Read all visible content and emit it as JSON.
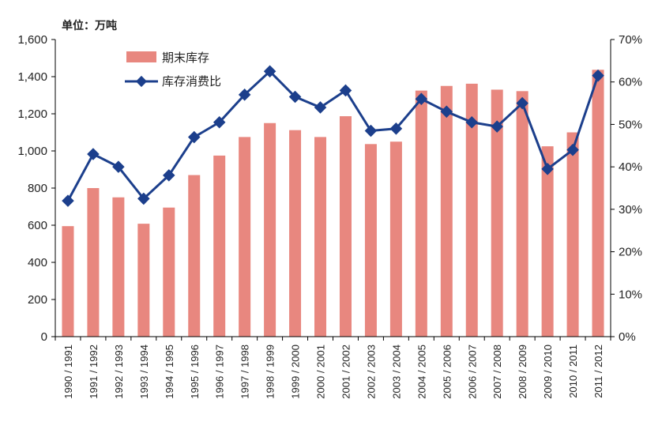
{
  "chart_data": {
    "type": "bar+line",
    "unit_label": "单位：万吨",
    "categories": [
      "1990 / 1991",
      "1991 / 1992",
      "1992 / 1993",
      "1993 / 1994",
      "1994 / 1995",
      "1995 / 1996",
      "1996 / 1997",
      "1997 / 1998",
      "1998 / 1999",
      "1999 / 2000",
      "2000 / 2001",
      "2001 / 2002",
      "2002 / 2003",
      "2003 / 2004",
      "2004 / 2005",
      "2005 / 2006",
      "2006 / 2007",
      "2007 / 2008",
      "2008 / 2009",
      "2009 / 2010",
      "2010 / 2011",
      "2011 / 2012"
    ],
    "series": [
      {
        "name": "期末库存",
        "type": "bar",
        "axis": "left",
        "color": "#e8877f",
        "values": [
          595,
          800,
          750,
          608,
          695,
          870,
          975,
          1075,
          1150,
          1112,
          1075,
          1187,
          1037,
          1050,
          1325,
          1350,
          1362,
          1330,
          1322,
          1025,
          1100,
          1437
        ]
      },
      {
        "name": "库存消费比",
        "type": "line",
        "axis": "right",
        "color": "#1c3f8c",
        "values": [
          32,
          43,
          40,
          32.5,
          38,
          47,
          50.5,
          57,
          62.5,
          56.5,
          54,
          58,
          48.5,
          49,
          56,
          53,
          50.5,
          49.5,
          55,
          39.5,
          44,
          61.5
        ]
      }
    ],
    "y_left": {
      "min": 0,
      "max": 1600,
      "ticks": [
        0,
        200,
        400,
        600,
        800,
        1000,
        1200,
        1400,
        1600
      ],
      "tick_labels": [
        "0",
        "200",
        "400",
        "600",
        "800",
        "1,000",
        "1,200",
        "1,400",
        "1,600"
      ]
    },
    "y_right": {
      "min": 0,
      "max": 70,
      "ticks": [
        0,
        10,
        20,
        30,
        40,
        50,
        60,
        70
      ],
      "tick_labels": [
        "0%",
        "10%",
        "20%",
        "30%",
        "40%",
        "50%",
        "60%",
        "70%"
      ]
    },
    "grid": false,
    "legend_position": "top-left"
  }
}
